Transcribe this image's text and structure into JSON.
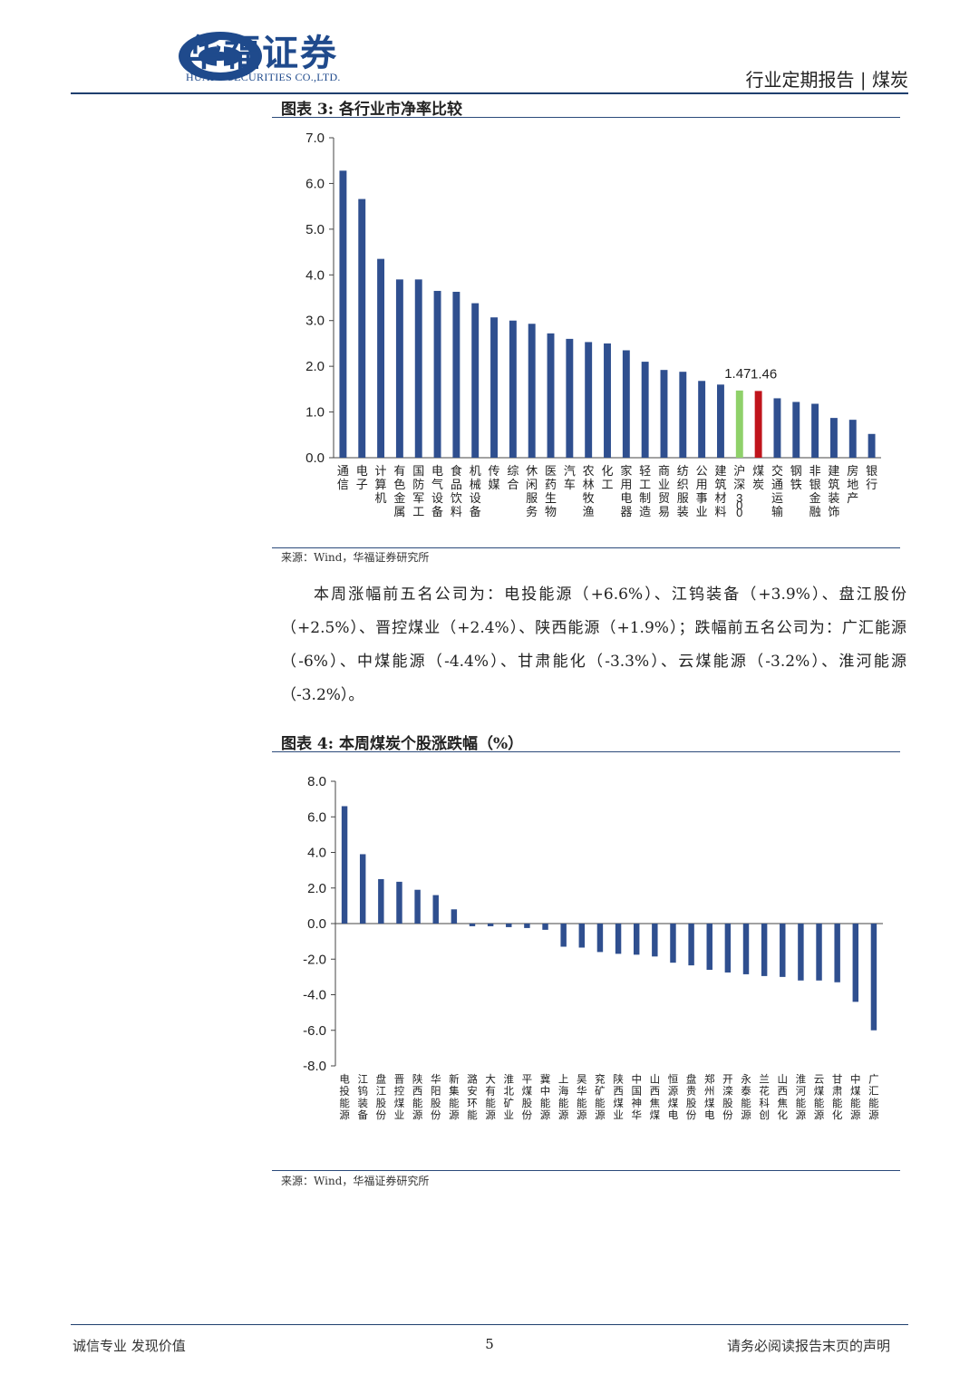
{
  "header": {
    "brand_cn": "华福证券",
    "brand_en": "HUAFU SECURITIES CO.,LTD.",
    "report_type": "行业定期报告 | 煤炭"
  },
  "figure3": {
    "title": "图表 3:  各行业市净率比较",
    "source": "来源：Wind，华福证券研究所"
  },
  "paragraph": "本周涨幅前五名公司为：电投能源（+6.6%）、江钨装备（+3.9%）、盘江股份（+2.5%）、晋控煤业（+2.4%）、陕西能源（+1.9%）；跌幅前五名公司为：广汇能源（-6%）、中煤能源（-4.4%）、甘肃能化（-3.3%）、云煤能源（-3.2%）、淮河能源（-3.2%）。",
  "figure4": {
    "title": "图表 4:  本周煤炭个股涨跌幅（%）",
    "source": "来源：Wind，华福证券研究所"
  },
  "footer": {
    "left": "诚信专业  发现价值",
    "page": "5",
    "right": "请务必阅读报告末页的声明"
  },
  "chart_data": [
    {
      "type": "bar",
      "categories": [
        "通信",
        "电子",
        "计算机",
        "有色金属",
        "国防军工",
        "电气设备",
        "食品饮料",
        "机械设备",
        "传媒",
        "综合",
        "休闲服务",
        "医药生物",
        "汽车",
        "农林牧渔",
        "化工",
        "家用电器",
        "轻工制造",
        "商业贸易",
        "纺织服装",
        "公用事业",
        "建筑材料",
        "沪深300",
        "煤炭",
        "交通运输",
        "钢铁",
        "非银金融",
        "建筑装饰",
        "房地产",
        "银行"
      ],
      "values": [
        6.28,
        5.66,
        4.35,
        3.9,
        3.9,
        3.65,
        3.63,
        3.38,
        3.07,
        3.0,
        2.93,
        2.72,
        2.6,
        2.53,
        2.5,
        2.35,
        2.1,
        1.92,
        1.88,
        1.68,
        1.6,
        1.47,
        1.46,
        1.3,
        1.22,
        1.18,
        0.87,
        0.83,
        0.52
      ],
      "colors": [
        "#2f4f8f",
        "#2f4f8f",
        "#2f4f8f",
        "#2f4f8f",
        "#2f4f8f",
        "#2f4f8f",
        "#2f4f8f",
        "#2f4f8f",
        "#2f4f8f",
        "#2f4f8f",
        "#2f4f8f",
        "#2f4f8f",
        "#2f4f8f",
        "#2f4f8f",
        "#2f4f8f",
        "#2f4f8f",
        "#2f4f8f",
        "#2f4f8f",
        "#2f4f8f",
        "#2f4f8f",
        "#2f4f8f",
        "#8fd16a",
        "#c0141b",
        "#2f4f8f",
        "#2f4f8f",
        "#2f4f8f",
        "#2f4f8f",
        "#2f4f8f",
        "#2f4f8f"
      ],
      "data_labels": {
        "21": "1.47",
        "22": "1.46"
      },
      "yticks": [
        "0.0",
        "1.0",
        "2.0",
        "3.0",
        "4.0",
        "5.0",
        "6.0",
        "7.0"
      ],
      "ylim": [
        0,
        7
      ]
    },
    {
      "type": "bar",
      "categories": [
        "电投能源",
        "江钨装备",
        "盘江股份",
        "晋控煤业",
        "陕西能源",
        "华阳股份",
        "新集能源",
        "潞安环能",
        "大有能源",
        "淮北矿业",
        "平煤股份",
        "冀中能源",
        "上海能源",
        "昊华能源",
        "兖矿能源",
        "陕西煤业",
        "中国神华",
        "山西焦煤",
        "恒源煤电",
        "盘贵股份",
        "郑州煤电",
        "开滦股份",
        "永泰能源",
        "兰花科创",
        "山西焦化",
        "淮河能源",
        "云煤能源",
        "甘肃能化",
        "中煤能源",
        "广汇能源"
      ],
      "values": [
        6.6,
        3.9,
        2.5,
        2.35,
        1.9,
        1.6,
        0.8,
        -0.15,
        -0.15,
        -0.2,
        -0.25,
        -0.35,
        -1.3,
        -1.35,
        -1.6,
        -1.7,
        -1.75,
        -1.85,
        -2.2,
        -2.35,
        -2.6,
        -2.75,
        -2.85,
        -2.95,
        -3.0,
        -3.2,
        -3.2,
        -3.3,
        -4.4,
        -6.0
      ],
      "color": "#2f4f8f",
      "yticks": [
        "-8.0",
        "-6.0",
        "-4.0",
        "-2.0",
        "0.0",
        "2.0",
        "4.0",
        "6.0",
        "8.0"
      ],
      "ylim": [
        -8,
        8
      ]
    }
  ]
}
